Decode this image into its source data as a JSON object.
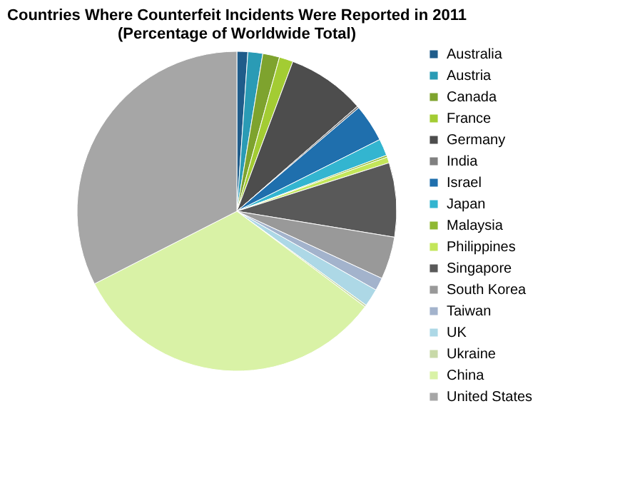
{
  "chart_data": {
    "type": "pie",
    "title": [
      "Countries Where Counterfeit Incidents Were Reported in 2011",
      "(Percentage of Worldwide Total)"
    ],
    "categories": [
      "Australia",
      "Austria",
      "Canada",
      "France",
      "Germany",
      "India",
      "Israel",
      "Japan",
      "Malaysia",
      "Philippines",
      "Singapore",
      "South Korea",
      "Taiwan",
      "UK",
      "Ukraine",
      "China",
      "United States"
    ],
    "values": [
      1.1,
      1.5,
      1.7,
      1.4,
      7.9,
      0.2,
      3.8,
      1.7,
      0.2,
      0.6,
      7.5,
      4.3,
      1.3,
      1.8,
      0.2,
      32.3,
      32.5
    ],
    "colors": [
      "#1f5c8a",
      "#2a9bb5",
      "#7ea32e",
      "#a3cc33",
      "#4d4d4d",
      "#808080",
      "#1f6fad",
      "#33b5d0",
      "#8fb832",
      "#c3e65a",
      "#595959",
      "#999999",
      "#a3b3cc",
      "#add8e6",
      "#c8d9a8",
      "#d9f2a6",
      "#a6a6a6"
    ],
    "legend": "right"
  }
}
